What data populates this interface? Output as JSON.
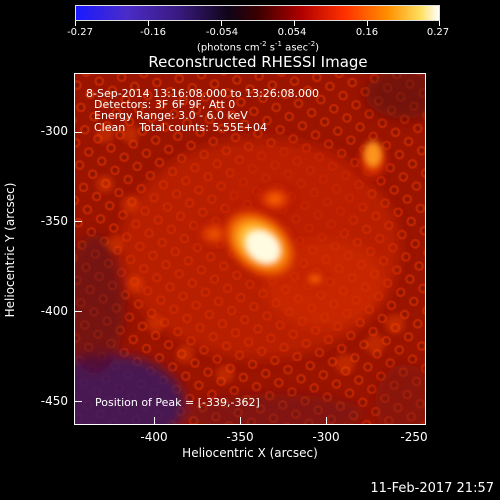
{
  "colorbar": {
    "tick_labels": [
      "-0.27",
      "-0.16",
      "-0.054",
      "0.054",
      "0.16",
      "0.27"
    ],
    "units_main": "(photons cm",
    "units_exp1": "-2",
    "units_mid1": " s",
    "units_exp2": "-1",
    "units_mid2": " asec",
    "units_exp3": "-2",
    "units_end": ")"
  },
  "title": "Reconstructed RHESSI Image",
  "info": {
    "line1": "8-Sep-2014 13:16:08.000 to 13:26:08.000",
    "line2": "Detectors: 3F 6F 9F, Att 0",
    "line3": "Energy Range: 3.0 - 6.0 keV",
    "line4": "Clean    Total counts: 5.55E+04",
    "peak": "Position of Peak = [-339,-362]"
  },
  "y_axis": {
    "label": "Heliocentric Y (arcsec)",
    "ticks": [
      "-300",
      "-350",
      "-400",
      "-450"
    ]
  },
  "x_axis": {
    "label": "Heliocentric X (arcsec)",
    "ticks": [
      "-400",
      "-350",
      "-300",
      "-250"
    ]
  },
  "footer": "11-Feb-2017 21:57",
  "colors": {
    "background": "#000000",
    "text": "#ffffff",
    "image_low": "#3a1a60",
    "image_mid": "#b01800",
    "image_high": "#fff8c0"
  }
}
